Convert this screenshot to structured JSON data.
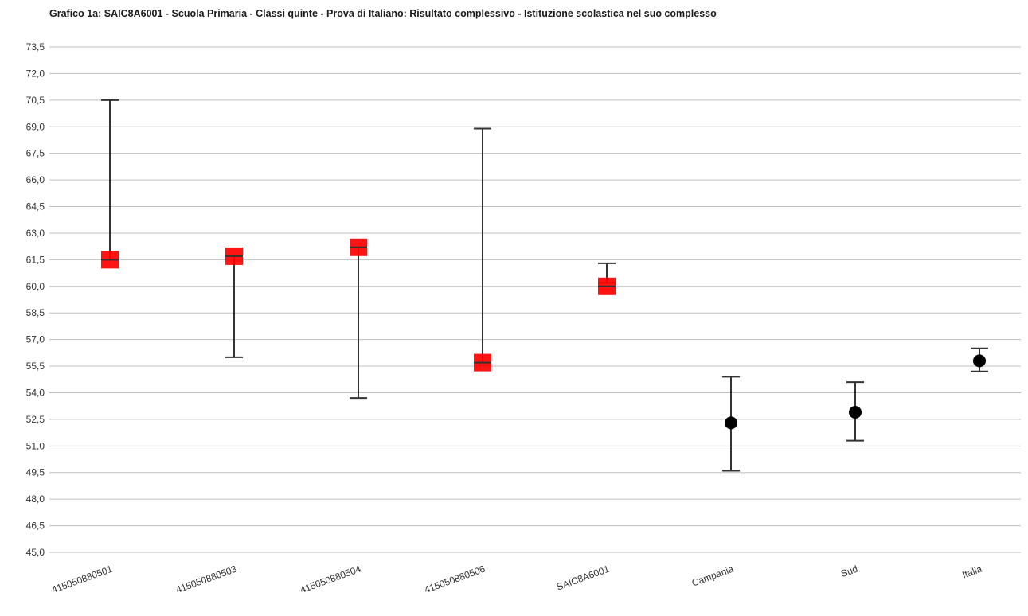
{
  "chart_data": {
    "type": "scatter",
    "title": "Grafico 1a: SAIC8A6001 - Scuola Primaria - Classi quinte - Prova di Italiano: Risultato complessivo - Istituzione scolastica nel suo complesso",
    "xlabel": "",
    "ylabel": "",
    "ylim": [
      45.0,
      73.5
    ],
    "y_ticks": [
      "45,0",
      "46,5",
      "48,0",
      "49,5",
      "51,0",
      "52,5",
      "54,0",
      "55,5",
      "57,0",
      "58,5",
      "60,0",
      "61,5",
      "63,0",
      "64,5",
      "66,0",
      "67,5",
      "69,0",
      "70,5",
      "72,0",
      "73,5"
    ],
    "grid": true,
    "categories": [
      "415050880501",
      "415050880503",
      "415050880504",
      "415050880506",
      "SAIC8A6001",
      "Campania",
      "Sud",
      "Italia"
    ],
    "points": [
      {
        "category": "415050880501",
        "value": 61.5,
        "low": 61.5,
        "high": 70.5,
        "marker": "square",
        "color": "#ff0000"
      },
      {
        "category": "415050880503",
        "value": 61.7,
        "low": 56.0,
        "high": 61.7,
        "marker": "square",
        "color": "#ff0000"
      },
      {
        "category": "415050880504",
        "value": 62.2,
        "low": 53.7,
        "high": 62.2,
        "marker": "square",
        "color": "#ff0000"
      },
      {
        "category": "415050880506",
        "value": 55.7,
        "low": 55.7,
        "high": 68.9,
        "marker": "square",
        "color": "#ff0000"
      },
      {
        "category": "SAIC8A6001",
        "value": 60.0,
        "low": 60.2,
        "high": 61.3,
        "marker": "square",
        "color": "#ff0000"
      },
      {
        "category": "Campania",
        "value": 52.3,
        "low": 49.6,
        "high": 54.9,
        "marker": "circle",
        "color": "#000000"
      },
      {
        "category": "Sud",
        "value": 52.9,
        "low": 51.3,
        "high": 54.6,
        "marker": "circle",
        "color": "#000000"
      },
      {
        "category": "Italia",
        "value": 55.8,
        "low": 55.2,
        "high": 56.5,
        "marker": "circle",
        "color": "#000000"
      }
    ]
  }
}
